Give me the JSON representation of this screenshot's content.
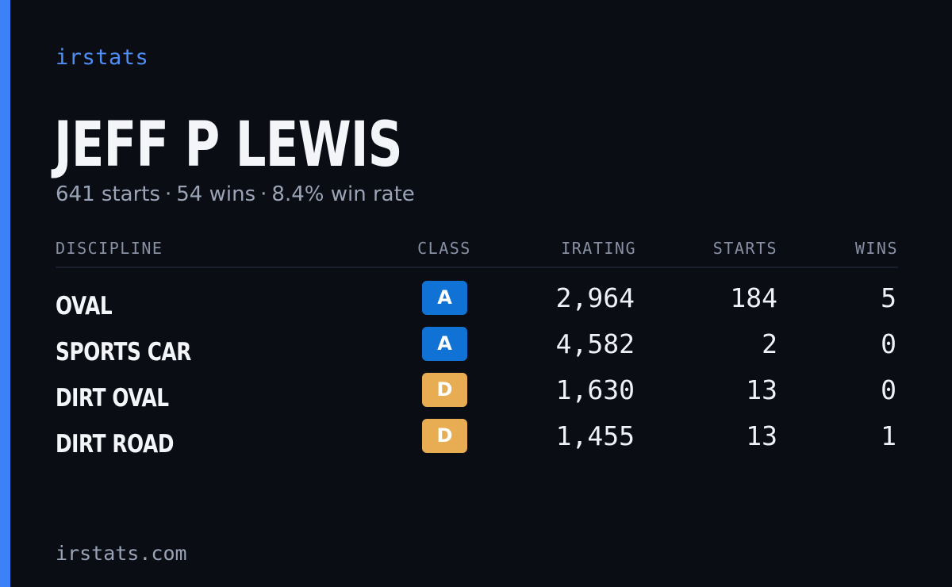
{
  "brand": "irstats",
  "driver": {
    "name": "JEFF P LEWIS"
  },
  "summary": {
    "starts": "641 starts",
    "wins": "54 wins",
    "win_rate": "8.4% win rate",
    "separator": "·"
  },
  "table": {
    "headers": {
      "discipline": "DISCIPLINE",
      "class": "CLASS",
      "irating": "IRATING",
      "starts": "STARTS",
      "wins": "WINS"
    },
    "rows": [
      {
        "discipline": "OVAL",
        "class": "A",
        "irating": "2,964",
        "starts": "184",
        "wins": "5"
      },
      {
        "discipline": "SPORTS CAR",
        "class": "A",
        "irating": "4,582",
        "starts": "2",
        "wins": "0"
      },
      {
        "discipline": "DIRT OVAL",
        "class": "D",
        "irating": "1,630",
        "starts": "13",
        "wins": "0"
      },
      {
        "discipline": "DIRT ROAD",
        "class": "D",
        "irating": "1,455",
        "starts": "13",
        "wins": "1"
      }
    ]
  },
  "colors": {
    "background": "#0a0d14",
    "accent": "#3b82f6",
    "class_a": "#1172d6",
    "class_d": "#e8ac52"
  },
  "footer": {
    "url": "irstats.com"
  }
}
